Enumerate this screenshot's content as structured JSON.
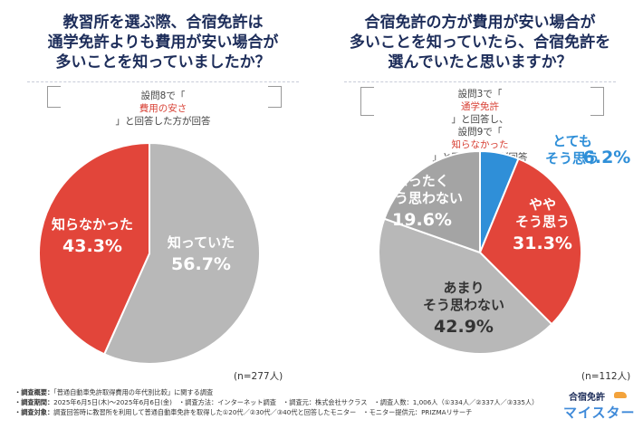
{
  "panels": [
    {
      "title_lines": [
        "教習所を選ぶ際、合宿免許は",
        "通学免許よりも費用が安い場合が",
        "多いことを知っていましたか？"
      ],
      "note_lines": [
        {
          "pre": "設問8で「",
          "hl": "費用の安さ",
          "post": "」と回答した方が回答"
        }
      ],
      "n_label": "(n=277人)"
    },
    {
      "title_lines": [
        "合宿免許の方が費用が安い場合が",
        "多いことを知っていたら、合宿免許を",
        "選んでいたと思いますか？"
      ],
      "note_lines": [
        {
          "pre": "設問3で「",
          "hl": "通学免許",
          "post": "」と回答し、"
        },
        {
          "pre": "設問9で「",
          "hl": "知らなかった",
          "post": "」と回答した方が回答"
        }
      ],
      "n_label": "(n=112人)"
    }
  ],
  "chart_data": [
    {
      "type": "pie",
      "start_angle_deg": 0,
      "direction": "clockwise",
      "slices": [
        {
          "name": "知っていた",
          "label_lines": [
            "知っていた"
          ],
          "value": 56.7,
          "value_label": "56.7%",
          "color": "#b8b8b8",
          "text_color": "#ffffff"
        },
        {
          "name": "知らなかった",
          "label_lines": [
            "知らなかった"
          ],
          "value": 43.3,
          "value_label": "43.3%",
          "color": "#e2453a",
          "text_color": "#ffffff"
        }
      ]
    },
    {
      "type": "pie",
      "start_angle_deg": 0,
      "direction": "clockwise",
      "slices": [
        {
          "name": "とてもそう思う",
          "label_lines": [
            "とても",
            "そう思う"
          ],
          "value": 6.2,
          "value_label": "6.2%",
          "color": "#2f8fd8",
          "text_color": "#2f8fd8"
        },
        {
          "name": "ややそう思う",
          "label_lines": [
            "やや",
            "そう思う"
          ],
          "value": 31.3,
          "value_label": "31.3%",
          "color": "#e2453a",
          "text_color": "#ffffff"
        },
        {
          "name": "あまりそう思わない",
          "label_lines": [
            "あまり",
            "そう思わない"
          ],
          "value": 42.9,
          "value_label": "42.9%",
          "color": "#b8b8b8",
          "text_color": "#333333"
        },
        {
          "name": "まったくそう思わない",
          "label_lines": [
            "まったく",
            "そう思わない"
          ],
          "value": 19.6,
          "value_label": "19.6%",
          "color": "#a4a4a4",
          "text_color": "#ffffff"
        }
      ]
    }
  ],
  "footer": {
    "rows": [
      {
        "label": "・調査概要：",
        "text": "「普通自動車免許取得費用の年代別比較」に関する調査"
      },
      {
        "label": "・調査期間：",
        "text": "2025年6月5日(木)〜2025年6月6日(金)　・調査方法：インターネット調査　・調査元：株式会社サクラス　・調査人数：1,006人（①334人／②337人／③335人）"
      },
      {
        "label": "・調査対象：",
        "text": "調査回答時に教習所を利用して普通自動車免許を取得した①20代／②30代／③40代と回答したモニター　・モニター提供元：PRIZMAリサーチ"
      }
    ]
  },
  "logo": {
    "line1": "合宿免許",
    "line2": "マイスター"
  }
}
